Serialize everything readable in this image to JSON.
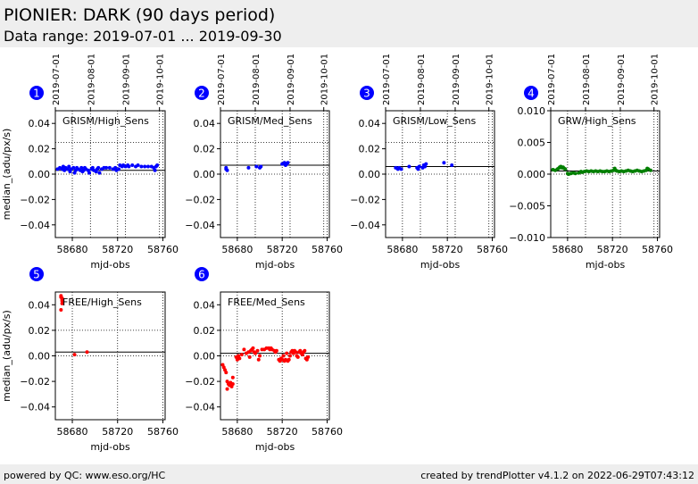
{
  "header": {
    "title": "PIONIER: DARK (90 days period)",
    "subtitle": "Data range: 2019-07-01 ... 2019-09-30"
  },
  "footer": {
    "left": "powered by QC: www.eso.org/HC",
    "right": "created by trendPlotter v4.1.2 on 2022-06-29T07:43:12"
  },
  "colors": {
    "blue": "#0000ff",
    "green": "#007f00",
    "red": "#ff0000",
    "badge": "#0000ff"
  },
  "chart_data": [
    {
      "type": "scatter",
      "badge": "1",
      "label": "GRISM/High_Sens",
      "xlabel": "mjd-obs",
      "ylabel": "median_(adu/px/s)",
      "xlim": [
        58665,
        58762
      ],
      "ylim": [
        -0.05,
        0.05
      ],
      "xticks": [
        58680,
        58720,
        58760
      ],
      "yticks": [
        0.04,
        0.02,
        0.0,
        -0.02,
        -0.04
      ],
      "ytick_labels": [
        "0.04",
        "0.02",
        "0.00",
        "−0.02",
        "−0.04"
      ],
      "top_ticks": [
        "2019-07-01",
        "2019-08-01",
        "2019-09-01",
        "2019-10-01"
      ],
      "top_tick_x": [
        58665,
        58696,
        58727,
        58757
      ],
      "hlines_dotted": [
        0.025,
        0.0
      ],
      "hline_solid": 0.003,
      "color": "blue",
      "points": [
        [
          58667,
          0.004
        ],
        [
          58669,
          0.005
        ],
        [
          58671,
          0.004
        ],
        [
          58672,
          0.006
        ],
        [
          58673,
          0.003
        ],
        [
          58674,
          0.005
        ],
        [
          58676,
          0.004
        ],
        [
          58677,
          0.006
        ],
        [
          58678,
          0.002
        ],
        [
          58679,
          0.004
        ],
        [
          58681,
          0.005
        ],
        [
          58682,
          0.001
        ],
        [
          58683,
          0.003
        ],
        [
          58684,
          0.005
        ],
        [
          58685,
          0.004
        ],
        [
          58687,
          0.003
        ],
        [
          58688,
          0.005
        ],
        [
          58689,
          0.002
        ],
        [
          58690,
          0.003
        ],
        [
          58691,
          0.005
        ],
        [
          58692,
          0.004
        ],
        [
          58694,
          0.003
        ],
        [
          58695,
          0.001
        ],
        [
          58697,
          0.004
        ],
        [
          58698,
          0.005
        ],
        [
          58699,
          0.003
        ],
        [
          58701,
          0.002
        ],
        [
          58702,
          0.004
        ],
        [
          58703,
          0.005
        ],
        [
          58704,
          0.001
        ],
        [
          58706,
          0.004
        ],
        [
          58708,
          0.005
        ],
        [
          58710,
          0.005
        ],
        [
          58713,
          0.005
        ],
        [
          58716,
          0.004
        ],
        [
          58718,
          0.005
        ],
        [
          58719,
          0.003
        ],
        [
          58721,
          0.004
        ],
        [
          58722,
          0.007
        ],
        [
          58724,
          0.006
        ],
        [
          58725,
          0.007
        ],
        [
          58727,
          0.006
        ],
        [
          58729,
          0.007
        ],
        [
          58730,
          0.006
        ],
        [
          58733,
          0.007
        ],
        [
          58736,
          0.006
        ],
        [
          58738,
          0.007
        ],
        [
          58741,
          0.006
        ],
        [
          58744,
          0.006
        ],
        [
          58747,
          0.006
        ],
        [
          58750,
          0.006
        ],
        [
          58752,
          0.005
        ],
        [
          58753,
          0.003
        ],
        [
          58754,
          0.006
        ],
        [
          58755,
          0.007
        ]
      ]
    },
    {
      "type": "scatter",
      "badge": "2",
      "label": "GRISM/Med_Sens",
      "xlabel": "mjd-obs",
      "ylabel": "",
      "xlim": [
        58665,
        58762
      ],
      "ylim": [
        -0.05,
        0.05
      ],
      "xticks": [
        58680,
        58720,
        58760
      ],
      "yticks": [
        0.04,
        0.02,
        0.0,
        -0.02,
        -0.04
      ],
      "ytick_labels": [
        "0.04",
        "0.02",
        "0.00",
        "−0.02",
        "−0.04"
      ],
      "top_ticks": [
        "2019-07-01",
        "2019-08-01",
        "2019-09-01",
        "2019-10-01"
      ],
      "top_tick_x": [
        58665,
        58696,
        58727,
        58757
      ],
      "hlines_dotted": [
        0.025,
        0.0
      ],
      "hline_solid": 0.007,
      "color": "blue",
      "points": [
        [
          58670,
          0.005
        ],
        [
          58670,
          0.004
        ],
        [
          58671,
          0.003
        ],
        [
          58690,
          0.005
        ],
        [
          58697,
          0.006
        ],
        [
          58700,
          0.005
        ],
        [
          58701,
          0.006
        ],
        [
          58720,
          0.008
        ],
        [
          58722,
          0.009
        ],
        [
          58723,
          0.007
        ],
        [
          58724,
          0.008
        ],
        [
          58725,
          0.009
        ]
      ]
    },
    {
      "type": "scatter",
      "badge": "3",
      "label": "GRISM/Low_Sens",
      "xlabel": "mjd-obs",
      "ylabel": "",
      "xlim": [
        58665,
        58762
      ],
      "ylim": [
        -0.05,
        0.05
      ],
      "xticks": [
        58680,
        58720,
        58760
      ],
      "yticks": [
        0.04,
        0.02,
        0.0,
        -0.02,
        -0.04
      ],
      "ytick_labels": [
        "0.04",
        "0.02",
        "0.00",
        "−0.02",
        "−0.04"
      ],
      "top_ticks": [
        "2019-07-01",
        "2019-08-01",
        "2019-09-01",
        "2019-10-01"
      ],
      "top_tick_x": [
        58665,
        58696,
        58727,
        58757
      ],
      "hlines_dotted": [
        0.025,
        0.0
      ],
      "hline_solid": 0.006,
      "color": "blue",
      "points": [
        [
          58674,
          0.005
        ],
        [
          58676,
          0.004
        ],
        [
          58677,
          0.005
        ],
        [
          58679,
          0.004
        ],
        [
          58686,
          0.006
        ],
        [
          58693,
          0.005
        ],
        [
          58694,
          0.004
        ],
        [
          58695,
          0.006
        ],
        [
          58698,
          0.005
        ],
        [
          58699,
          0.007
        ],
        [
          58700,
          0.006
        ],
        [
          58701,
          0.008
        ],
        [
          58717,
          0.009
        ],
        [
          58724,
          0.007
        ]
      ]
    },
    {
      "type": "scatter",
      "badge": "4",
      "label": "GRW/High_Sens",
      "xlabel": "mjd-obs",
      "ylabel": "",
      "xlim": [
        58665,
        58762
      ],
      "ylim": [
        -0.01,
        0.01
      ],
      "xticks": [
        58680,
        58720,
        58760
      ],
      "yticks": [
        0.01,
        0.005,
        0.0,
        -0.005,
        -0.01
      ],
      "ytick_labels": [
        "0.010",
        "0.005",
        "0.000",
        "−0.005",
        "−0.010"
      ],
      "top_ticks": [
        "2019-07-01",
        "2019-08-01",
        "2019-09-01",
        "2019-10-01"
      ],
      "top_tick_x": [
        58665,
        58696,
        58727,
        58757
      ],
      "hlines_dotted": [
        0.0
      ],
      "hline_solid": 0.0005,
      "color": "green",
      "points": [
        [
          58667,
          0.0007
        ],
        [
          58669,
          0.0006
        ],
        [
          58671,
          0.0008
        ],
        [
          58672,
          0.0009
        ],
        [
          58673,
          0.0011
        ],
        [
          58674,
          0.0012
        ],
        [
          58675,
          0.001
        ],
        [
          58676,
          0.0011
        ],
        [
          58677,
          0.0009
        ],
        [
          58678,
          0.0008
        ],
        [
          58680,
          0.0001
        ],
        [
          58681,
          0.0
        ],
        [
          58683,
          0.0001
        ],
        [
          58685,
          0.0002
        ],
        [
          58687,
          0.0001
        ],
        [
          58690,
          0.0002
        ],
        [
          58692,
          0.0004
        ],
        [
          58693,
          0.0003
        ],
        [
          58695,
          0.0004
        ],
        [
          58697,
          0.0005
        ],
        [
          58699,
          0.0004
        ],
        [
          58701,
          0.0005
        ],
        [
          58703,
          0.0004
        ],
        [
          58705,
          0.0005
        ],
        [
          58707,
          0.0004
        ],
        [
          58709,
          0.0005
        ],
        [
          58711,
          0.0004
        ],
        [
          58713,
          0.0004
        ],
        [
          58715,
          0.0005
        ],
        [
          58717,
          0.0004
        ],
        [
          58719,
          0.0005
        ],
        [
          58721,
          0.0006
        ],
        [
          58722,
          0.0009
        ],
        [
          58723,
          0.0006
        ],
        [
          58724,
          0.0005
        ],
        [
          58726,
          0.0004
        ],
        [
          58728,
          0.0005
        ],
        [
          58730,
          0.0004
        ],
        [
          58732,
          0.0005
        ],
        [
          58734,
          0.0006
        ],
        [
          58736,
          0.0005
        ],
        [
          58738,
          0.0004
        ],
        [
          58740,
          0.0005
        ],
        [
          58742,
          0.0006
        ],
        [
          58744,
          0.0005
        ],
        [
          58746,
          0.0004
        ],
        [
          58748,
          0.0005
        ],
        [
          58750,
          0.0006
        ],
        [
          58751,
          0.0009
        ],
        [
          58752,
          0.0008
        ],
        [
          58754,
          0.0006
        ]
      ]
    },
    {
      "type": "scatter",
      "badge": "5",
      "label": "FREE/High_Sens",
      "xlabel": "mjd-obs",
      "ylabel": "median_(adu/px/s)",
      "xlim": [
        58665,
        58762
      ],
      "ylim": [
        -0.05,
        0.05
      ],
      "xticks": [
        58680,
        58720,
        58760
      ],
      "yticks": [
        0.04,
        0.02,
        0.0,
        -0.02,
        -0.04
      ],
      "ytick_labels": [
        "0.04",
        "0.02",
        "0.00",
        "−0.02",
        "−0.04"
      ],
      "top_ticks": [],
      "top_tick_x": [],
      "hlines_dotted": [
        0.02,
        0.0
      ],
      "hline_solid": 0.003,
      "color": "red",
      "points": [
        [
          58670,
          0.047
        ],
        [
          58670,
          0.046
        ],
        [
          58671,
          0.045
        ],
        [
          58671,
          0.043
        ],
        [
          58671,
          0.041
        ],
        [
          58670,
          0.036
        ],
        [
          58671,
          0.044
        ],
        [
          58682,
          0.001
        ],
        [
          58693,
          0.003
        ]
      ]
    },
    {
      "type": "scatter",
      "badge": "6",
      "label": "FREE/Med_Sens",
      "xlabel": "mjd-obs",
      "ylabel": "",
      "xlim": [
        58665,
        58762
      ],
      "ylim": [
        -0.05,
        0.05
      ],
      "xticks": [
        58680,
        58720,
        58760
      ],
      "yticks": [
        0.04,
        0.02,
        0.0,
        -0.02,
        -0.04
      ],
      "ytick_labels": [
        "0.04",
        "0.02",
        "0.00",
        "−0.02",
        "−0.04"
      ],
      "top_ticks": [],
      "top_tick_x": [],
      "hlines_dotted": [
        0.02,
        0.0
      ],
      "hline_solid": 0.002,
      "color": "red",
      "points": [
        [
          58667,
          -0.007
        ],
        [
          58668,
          -0.009
        ],
        [
          58669,
          -0.011
        ],
        [
          58670,
          -0.013
        ],
        [
          58671,
          -0.02
        ],
        [
          58671,
          -0.026
        ],
        [
          58672,
          -0.022
        ],
        [
          58673,
          -0.023
        ],
        [
          58674,
          -0.021
        ],
        [
          58675,
          -0.024
        ],
        [
          58676,
          -0.022
        ],
        [
          58676,
          -0.017
        ],
        [
          58679,
          -0.001
        ],
        [
          58680,
          -0.003
        ],
        [
          58681,
          0.0
        ],
        [
          58682,
          -0.002
        ],
        [
          58684,
          0.001
        ],
        [
          58686,
          0.005
        ],
        [
          58688,
          0.002
        ],
        [
          58690,
          0.003
        ],
        [
          58691,
          -0.001
        ],
        [
          58692,
          0.004
        ],
        [
          58693,
          0.005
        ],
        [
          58694,
          0.006
        ],
        [
          58695,
          0.003
        ],
        [
          58696,
          0.002
        ],
        [
          58698,
          0.004
        ],
        [
          58699,
          -0.003
        ],
        [
          58700,
          0.0
        ],
        [
          58702,
          0.005
        ],
        [
          58704,
          0.005
        ],
        [
          58706,
          0.006
        ],
        [
          58708,
          0.006
        ],
        [
          58709,
          0.005
        ],
        [
          58710,
          0.006
        ],
        [
          58711,
          0.005
        ],
        [
          58713,
          0.004
        ],
        [
          58714,
          0.003
        ],
        [
          58715,
          0.004
        ],
        [
          58717,
          -0.003
        ],
        [
          58718,
          -0.004
        ],
        [
          58719,
          -0.002
        ],
        [
          58720,
          -0.003
        ],
        [
          58721,
          0.0
        ],
        [
          58722,
          -0.004
        ],
        [
          58723,
          -0.003
        ],
        [
          58724,
          0.002
        ],
        [
          58725,
          -0.004
        ],
        [
          58726,
          -0.003
        ],
        [
          58727,
          0.0
        ],
        [
          58728,
          0.003
        ],
        [
          58729,
          0.004
        ],
        [
          58730,
          0.002
        ],
        [
          58731,
          0.004
        ],
        [
          58732,
          0.003
        ],
        [
          58733,
          0.0
        ],
        [
          58734,
          -0.001
        ],
        [
          58735,
          0.003
        ],
        [
          58736,
          0.004
        ],
        [
          58737,
          0.002
        ],
        [
          58738,
          0.001
        ],
        [
          58739,
          0.003
        ],
        [
          58740,
          0.004
        ],
        [
          58741,
          -0.002
        ],
        [
          58742,
          -0.003
        ],
        [
          58743,
          -0.001
        ]
      ]
    }
  ]
}
